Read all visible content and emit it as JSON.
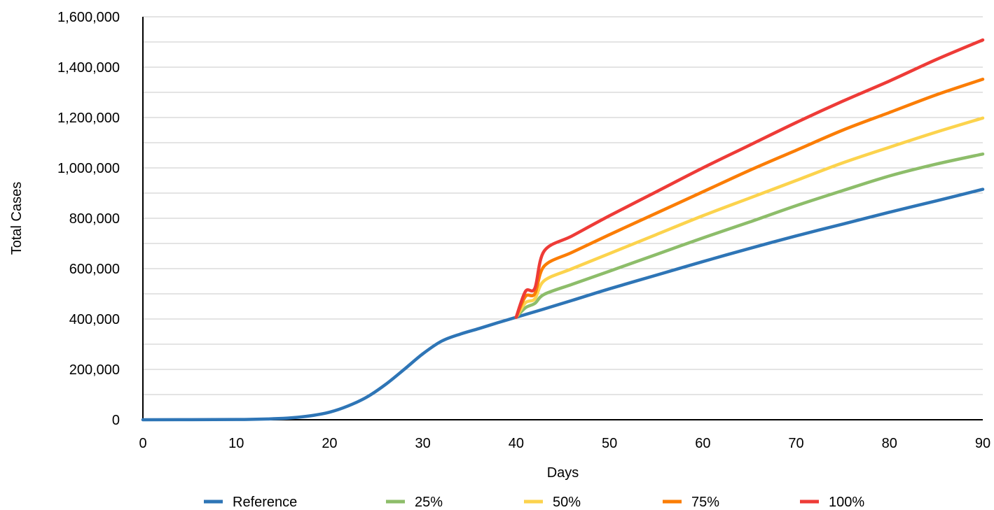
{
  "chart_data": {
    "type": "line",
    "xlabel": "Days",
    "ylabel": "Total Cases",
    "xlim": [
      0,
      90
    ],
    "ylim": [
      0,
      1600000
    ],
    "x_ticks": [
      0,
      10,
      20,
      30,
      40,
      50,
      60,
      70,
      80,
      90
    ],
    "x_tick_labels": [
      "0",
      "10",
      "20",
      "30",
      "40",
      "50",
      "60",
      "70",
      "80",
      "90"
    ],
    "y_ticks": [
      0,
      200000,
      400000,
      600000,
      800000,
      1000000,
      1200000,
      1400000,
      1600000
    ],
    "y_tick_labels": [
      "0",
      "200,000",
      "400,000",
      "600,000",
      "800,000",
      "1,000,000",
      "1,200,000",
      "1,400,000",
      "1,600,000"
    ],
    "y_minor_gridlines": [
      100000,
      300000,
      500000,
      700000,
      900000,
      1100000,
      1300000,
      1500000
    ],
    "grid": true,
    "legend_position": "bottom",
    "series": [
      {
        "name": "Reference",
        "color": "#2e75b6",
        "points": [
          [
            0,
            0
          ],
          [
            10,
            1000
          ],
          [
            14,
            4000
          ],
          [
            16,
            8000
          ],
          [
            18,
            16000
          ],
          [
            20,
            30000
          ],
          [
            22,
            55000
          ],
          [
            24,
            90000
          ],
          [
            26,
            140000
          ],
          [
            28,
            200000
          ],
          [
            30,
            262000
          ],
          [
            32,
            312000
          ],
          [
            34,
            340000
          ],
          [
            36,
            362000
          ],
          [
            38,
            385000
          ],
          [
            40,
            407000
          ],
          [
            43,
            440000
          ],
          [
            46,
            474000
          ],
          [
            50,
            520000
          ],
          [
            55,
            574000
          ],
          [
            60,
            628000
          ],
          [
            65,
            680000
          ],
          [
            70,
            730000
          ],
          [
            75,
            777000
          ],
          [
            80,
            824000
          ],
          [
            85,
            869000
          ],
          [
            90,
            915000
          ]
        ]
      },
      {
        "name": "25%",
        "color": "#8dbd6a",
        "points": [
          [
            40,
            407000
          ],
          [
            41,
            445000
          ],
          [
            42,
            462000
          ],
          [
            43,
            498000
          ],
          [
            46,
            538000
          ],
          [
            50,
            590000
          ],
          [
            55,
            656000
          ],
          [
            60,
            722000
          ],
          [
            65,
            785000
          ],
          [
            70,
            850000
          ],
          [
            75,
            910000
          ],
          [
            80,
            968000
          ],
          [
            85,
            1015000
          ],
          [
            90,
            1055000
          ]
        ]
      },
      {
        "name": "50%",
        "color": "#fcd34d",
        "points": [
          [
            40,
            407000
          ],
          [
            41,
            465000
          ],
          [
            42,
            480000
          ],
          [
            43,
            552000
          ],
          [
            46,
            600000
          ],
          [
            50,
            660000
          ],
          [
            55,
            735000
          ],
          [
            60,
            810000
          ],
          [
            65,
            880000
          ],
          [
            70,
            950000
          ],
          [
            75,
            1020000
          ],
          [
            80,
            1082000
          ],
          [
            85,
            1142000
          ],
          [
            90,
            1198000
          ]
        ]
      },
      {
        "name": "75%",
        "color": "#fb7d05",
        "points": [
          [
            40,
            407000
          ],
          [
            41,
            490000
          ],
          [
            42,
            500000
          ],
          [
            43,
            610000
          ],
          [
            46,
            665000
          ],
          [
            50,
            735000
          ],
          [
            55,
            820000
          ],
          [
            60,
            905000
          ],
          [
            65,
            990000
          ],
          [
            70,
            1070000
          ],
          [
            75,
            1150000
          ],
          [
            80,
            1220000
          ],
          [
            85,
            1290000
          ],
          [
            90,
            1352000
          ]
        ]
      },
      {
        "name": "100%",
        "color": "#ee3b37",
        "points": [
          [
            40,
            407000
          ],
          [
            41,
            510000
          ],
          [
            42,
            522000
          ],
          [
            43,
            670000
          ],
          [
            46,
            730000
          ],
          [
            50,
            810000
          ],
          [
            55,
            905000
          ],
          [
            60,
            1000000
          ],
          [
            65,
            1090000
          ],
          [
            70,
            1180000
          ],
          [
            75,
            1265000
          ],
          [
            80,
            1345000
          ],
          [
            85,
            1430000
          ],
          [
            90,
            1508000
          ]
        ]
      }
    ]
  }
}
